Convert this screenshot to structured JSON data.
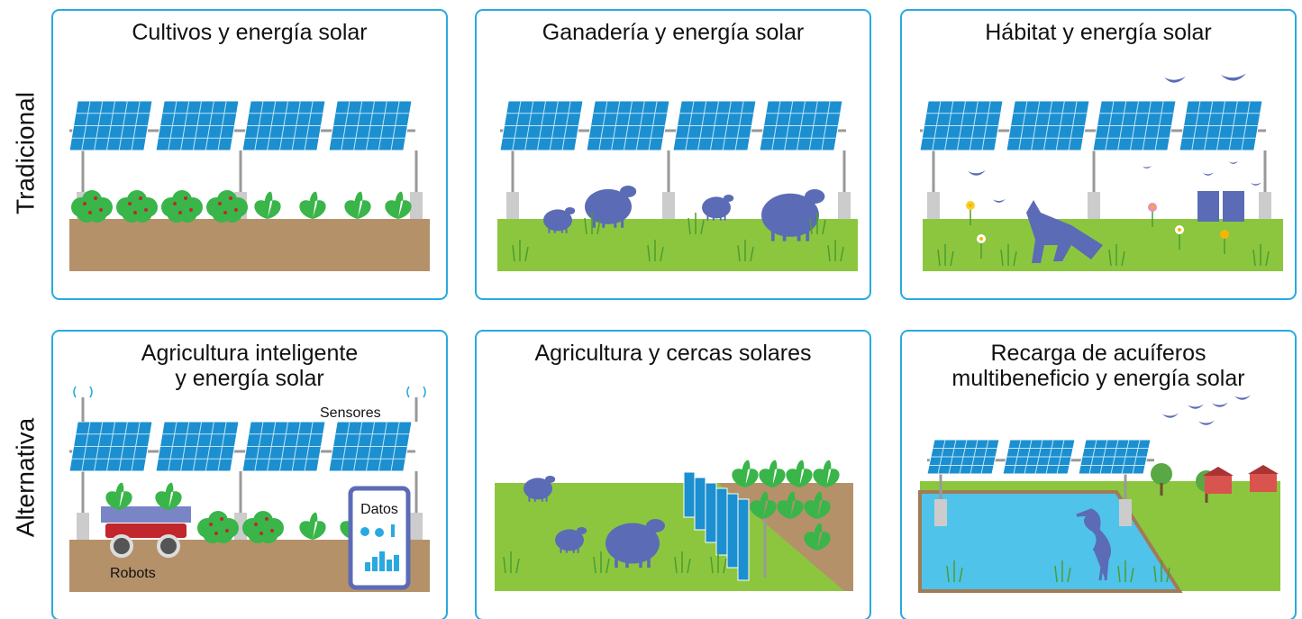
{
  "row_labels": [
    "Tradicional",
    "Alternativa"
  ],
  "panels": [
    {
      "title": [
        "Cultivos y energía solar"
      ]
    },
    {
      "title": [
        "Ganadería y energía solar"
      ]
    },
    {
      "title": [
        "Hábitat y energía solar"
      ]
    },
    {
      "title": [
        "Agricultura inteligente",
        "y energía solar"
      ],
      "labels": [
        "Sensores",
        "Robots",
        "Datos"
      ]
    },
    {
      "title": [
        "Agricultura y cercas solares"
      ]
    },
    {
      "title": [
        "Recarga de acuíferos",
        "multibeneficio y energía solar"
      ]
    }
  ]
}
